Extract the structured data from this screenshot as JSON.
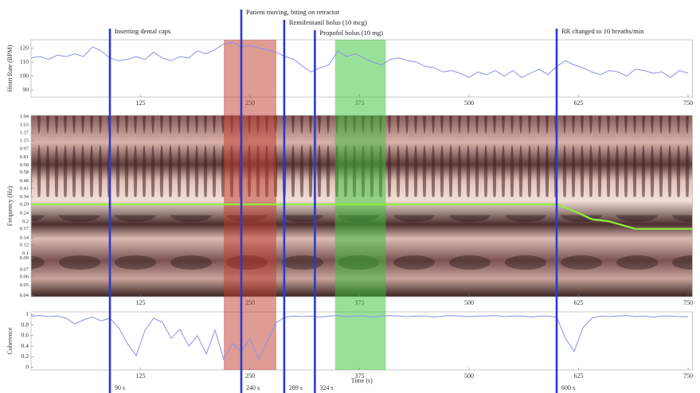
{
  "chart_data": [
    {
      "type": "line",
      "ylabel": "Heart Rate (BPM)",
      "x": [
        0,
        10,
        20,
        30,
        40,
        50,
        60,
        70,
        80,
        90,
        100,
        110,
        120,
        130,
        140,
        150,
        160,
        170,
        180,
        190,
        200,
        210,
        220,
        230,
        240,
        250,
        260,
        270,
        280,
        290,
        300,
        310,
        320,
        330,
        340,
        350,
        360,
        370,
        380,
        390,
        400,
        410,
        420,
        430,
        440,
        450,
        460,
        470,
        480,
        490,
        500,
        510,
        520,
        530,
        540,
        550,
        560,
        570,
        580,
        590,
        600,
        610,
        620,
        630,
        640,
        650,
        660,
        670,
        680,
        690,
        700,
        710,
        720,
        730,
        740,
        750
      ],
      "series": [
        {
          "color": "#8c90ea",
          "values": [
            113,
            114,
            112,
            115,
            114,
            116,
            114,
            121,
            118,
            113,
            111,
            112,
            114,
            112,
            117,
            113,
            111,
            114,
            113,
            118,
            116,
            119,
            123,
            124,
            121,
            122,
            120,
            119,
            117,
            114,
            112,
            107,
            103,
            106,
            108,
            118,
            114,
            116,
            113,
            110,
            108,
            112,
            113,
            111,
            110,
            107,
            106,
            103,
            104,
            102,
            99,
            103,
            101,
            104,
            100,
            104,
            99,
            102,
            105,
            101,
            107,
            111,
            108,
            106,
            103,
            101,
            104,
            103,
            100,
            105,
            104,
            102,
            103,
            99,
            104,
            102
          ]
        }
      ],
      "xlim": [
        0,
        755
      ],
      "xticks": [
        125,
        250,
        375,
        500,
        625,
        750
      ],
      "ylim": [
        85,
        126
      ],
      "yticks": [
        90,
        100,
        110,
        120
      ]
    },
    {
      "type": "line",
      "ylabel": "Frequency (Hz)",
      "log_y": true,
      "x": [
        0,
        600,
        605,
        615,
        625,
        640,
        660,
        690,
        755
      ],
      "series": [
        {
          "color": "#8ef03a",
          "values": [
            0.29,
            0.29,
            0.28,
            0.26,
            0.24,
            0.21,
            0.2,
            0.17,
            0.17
          ]
        }
      ],
      "xlim": [
        0,
        755
      ],
      "xticks": [
        125,
        250,
        375,
        500,
        625,
        750
      ],
      "ylim": [
        0.039,
        2.0
      ],
      "yticks": [
        1.94,
        1.63,
        1.37,
        1.15,
        0.97,
        0.81,
        0.68,
        0.58,
        0.48,
        0.41,
        0.34,
        0.29,
        0.24,
        0.2,
        0.17,
        0.14,
        0.12,
        0.1,
        0.09,
        0.07,
        0.06,
        0.05,
        0.04
      ]
    },
    {
      "type": "line",
      "ylabel": "Coherence",
      "xlabel": "Time (s)",
      "x": [
        0,
        10,
        20,
        30,
        40,
        50,
        60,
        70,
        80,
        90,
        100,
        110,
        120,
        130,
        140,
        150,
        160,
        170,
        180,
        190,
        200,
        210,
        220,
        230,
        240,
        250,
        260,
        270,
        280,
        290,
        300,
        310,
        320,
        330,
        340,
        350,
        360,
        370,
        380,
        390,
        400,
        410,
        420,
        430,
        440,
        450,
        460,
        470,
        480,
        490,
        500,
        510,
        520,
        530,
        540,
        550,
        560,
        570,
        580,
        590,
        600,
        610,
        620,
        630,
        640,
        650,
        660,
        670,
        680,
        690,
        700,
        710,
        720,
        730,
        740,
        750
      ],
      "series": [
        {
          "color": "#8c90ea",
          "values": [
            0.97,
            0.98,
            0.96,
            0.97,
            0.93,
            0.82,
            0.9,
            0.95,
            0.88,
            0.93,
            0.75,
            0.45,
            0.22,
            0.7,
            0.93,
            0.85,
            0.55,
            0.72,
            0.4,
            0.6,
            0.25,
            0.7,
            0.15,
            0.45,
            0.3,
            0.55,
            0.15,
            0.5,
            0.85,
            0.95,
            0.97,
            0.96,
            0.97,
            0.95,
            0.97,
            0.98,
            0.96,
            0.97,
            0.97,
            0.95,
            0.97,
            0.98,
            0.97,
            0.96,
            0.97,
            0.97,
            0.95,
            0.97,
            0.98,
            0.97,
            0.96,
            0.97,
            0.97,
            0.98,
            0.96,
            0.97,
            0.97,
            0.95,
            0.97,
            0.97,
            0.95,
            0.55,
            0.3,
            0.75,
            0.93,
            0.97,
            0.96,
            0.97,
            0.98,
            0.96,
            0.97,
            0.95,
            0.97,
            0.97,
            0.96,
            0.96
          ]
        }
      ],
      "xlim": [
        0,
        755
      ],
      "xticks": [
        125,
        250,
        375,
        500,
        625,
        750
      ],
      "ylim": [
        -0.05,
        1.05
      ],
      "yticks": [
        0,
        0.2,
        0.4,
        0.6,
        0.8,
        1
      ]
    }
  ],
  "events": [
    {
      "time": {
        "value": 90,
        "label": "90 s"
      },
      "label": "Inserting dental caps"
    },
    {
      "time": {
        "value": 240,
        "label": "240 s"
      },
      "label": "Patient moving, biting on retractor"
    },
    {
      "time": {
        "value": 289,
        "label": "289 s"
      },
      "label": "Remifentanil bolus (10 mcg)"
    },
    {
      "time": {
        "value": 324,
        "label": "324 s"
      },
      "label": "Propofol bolus (10 mg)"
    },
    {
      "time": {
        "value": 600,
        "label": "600 s"
      },
      "label": "RR changed to 10 breaths/min"
    }
  ],
  "shaded_regions": [
    {
      "start": 220,
      "end": 280,
      "color": "#c0392b"
    },
    {
      "start": 347,
      "end": 405,
      "color": "#33c433"
    }
  ]
}
